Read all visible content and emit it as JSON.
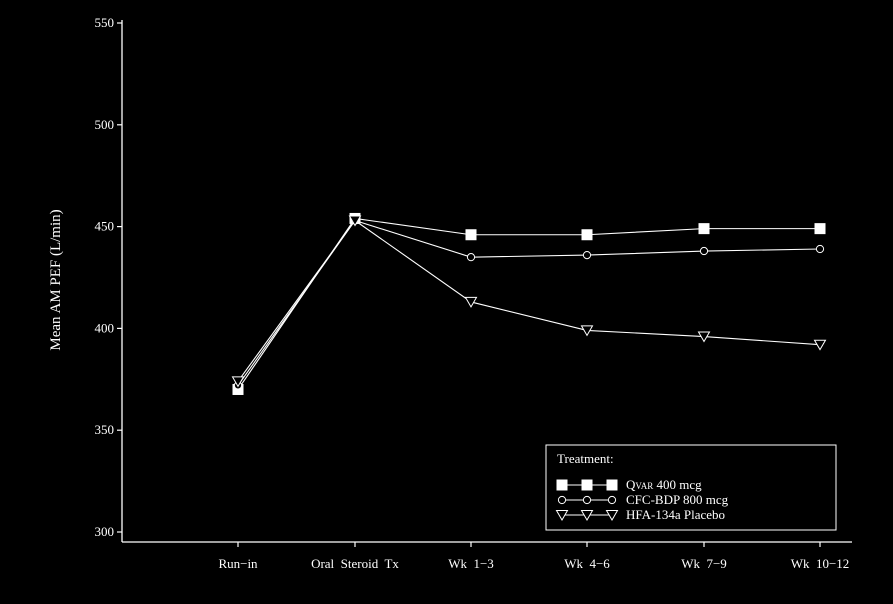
{
  "chart_data": {
    "type": "line",
    "ylabel": "Mean AM PEF (L/min)",
    "xlabel": "",
    "categories": [
      "Run−in",
      "Oral  Steroid  Tx",
      "Wk  1−3",
      "Wk  4−6",
      "Wk  7−9",
      "Wk  10−12"
    ],
    "ylim": [
      300,
      550
    ],
    "yticks": [
      300,
      350,
      400,
      450,
      500,
      550
    ],
    "grid": false,
    "legend": {
      "title": "Treatment:",
      "placement": "bottom-right",
      "labels": [
        "Qvar 400 mcg",
        "CFC-BDP 800 mcg",
        "HFA-134a Placebo"
      ]
    },
    "series": [
      {
        "name": "Qvar 400 mcg",
        "marker": "filled-square",
        "values": [
          370,
          454,
          446,
          446,
          449,
          449
        ]
      },
      {
        "name": "CFC-BDP 800 mcg",
        "marker": "open-circle",
        "values": [
          372,
          453,
          435,
          436,
          438,
          439
        ]
      },
      {
        "name": "HFA-134a Placebo",
        "marker": "open-triangle-down",
        "values": [
          374,
          453,
          413,
          399,
          396,
          392
        ]
      }
    ],
    "colors": {
      "background": "#000000",
      "foreground": "#ffffff"
    }
  }
}
